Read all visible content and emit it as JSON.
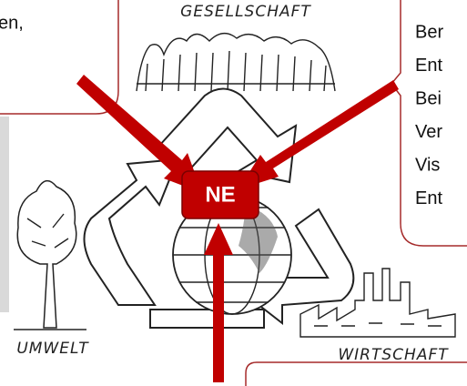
{
  "labels": {
    "top": "GESELLSCHAFT",
    "left": "UMWELT",
    "right": "WIRTSCHAFT"
  },
  "center": "NE",
  "callouts": {
    "top_left": [
      "en,"
    ],
    "top_right": [
      "Ber",
      "Ent",
      "Bei",
      "Ver",
      "Vis",
      "Ent"
    ]
  }
}
